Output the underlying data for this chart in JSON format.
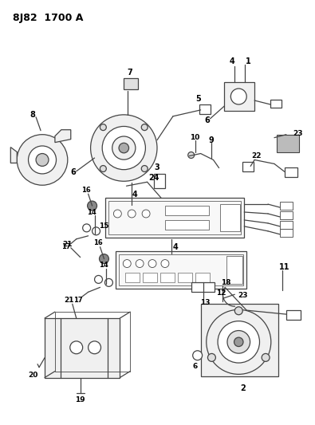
{
  "title": "8J82  1700 A",
  "background_color": "#ffffff",
  "line_color": "#444444",
  "text_color": "#000000",
  "figsize": [
    3.95,
    5.33
  ],
  "dpi": 100
}
